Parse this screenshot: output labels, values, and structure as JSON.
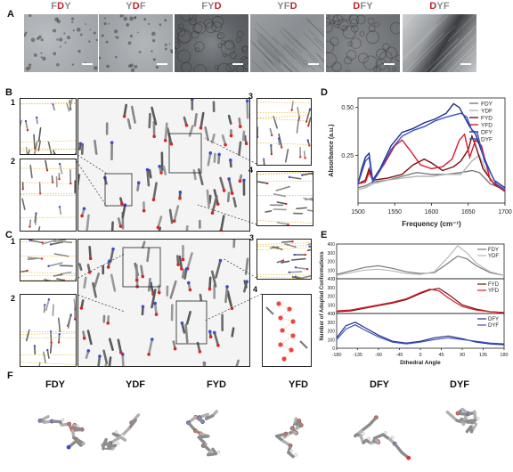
{
  "panels": {
    "A": "A",
    "B": "B",
    "C": "C",
    "D": "D",
    "E": "E",
    "F": "F"
  },
  "tem_titles": [
    {
      "parts": [
        {
          "t": "F",
          "c": "#8a8a8a"
        },
        {
          "t": "D",
          "c": "#c0262d"
        },
        {
          "t": "Y",
          "c": "#8a8a8a"
        }
      ]
    },
    {
      "parts": [
        {
          "t": "Y",
          "c": "#8a8a8a"
        },
        {
          "t": "D",
          "c": "#c0262d"
        },
        {
          "t": "F",
          "c": "#8a8a8a"
        }
      ]
    },
    {
      "parts": [
        {
          "t": "F",
          "c": "#8a8a8a"
        },
        {
          "t": "Y",
          "c": "#8a8a8a"
        },
        {
          "t": "D",
          "c": "#c0262d"
        }
      ]
    },
    {
      "parts": [
        {
          "t": "Y",
          "c": "#8a8a8a"
        },
        {
          "t": "F",
          "c": "#8a8a8a"
        },
        {
          "t": "D",
          "c": "#c0262d"
        }
      ]
    },
    {
      "parts": [
        {
          "t": "D",
          "c": "#c0262d"
        },
        {
          "t": "F",
          "c": "#8a8a8a"
        },
        {
          "t": "Y",
          "c": "#8a8a8a"
        }
      ]
    },
    {
      "parts": [
        {
          "t": "D",
          "c": "#c0262d"
        },
        {
          "t": "Y",
          "c": "#8a8a8a"
        },
        {
          "t": "F",
          "c": "#8a8a8a"
        }
      ]
    }
  ],
  "sub_labels_B": [
    "1",
    "2",
    "3",
    "4"
  ],
  "sub_labels_C": [
    "1",
    "2",
    "3",
    "4"
  ],
  "mol_titles": [
    "FDY",
    "YDF",
    "FYD",
    "YFD",
    "DFY",
    "DYF"
  ],
  "chart_data": [
    {
      "type": "line",
      "panel": "D",
      "xlabel": "Frequency (cm⁻¹)",
      "ylabel": "Absorbance (a.u.)",
      "xlim": [
        1500,
        1700
      ],
      "ylim": [
        0.0,
        0.55
      ],
      "xticks": [
        "1500",
        "1550",
        "1600",
        "1650",
        "1700"
      ],
      "yticks": [
        "0.25",
        "0.50"
      ],
      "legend_position": "top-right",
      "series": [
        {
          "name": "FDY",
          "color": "#7a7a7a",
          "x": [
            1500,
            1510,
            1520,
            1540,
            1560,
            1580,
            1600,
            1620,
            1640,
            1655,
            1665,
            1680,
            1700
          ],
          "y": [
            0.08,
            0.09,
            0.11,
            0.12,
            0.14,
            0.16,
            0.15,
            0.15,
            0.16,
            0.17,
            0.16,
            0.1,
            0.07
          ]
        },
        {
          "name": "YDF",
          "color": "#b5b5b5",
          "x": [
            1500,
            1510,
            1520,
            1540,
            1560,
            1580,
            1600,
            1620,
            1640,
            1655,
            1665,
            1680,
            1700
          ],
          "y": [
            0.07,
            0.08,
            0.1,
            0.12,
            0.13,
            0.14,
            0.14,
            0.15,
            0.15,
            0.22,
            0.25,
            0.12,
            0.06
          ]
        },
        {
          "name": "FYD",
          "color": "#7a1010",
          "x": [
            1500,
            1510,
            1515,
            1520,
            1540,
            1560,
            1575,
            1590,
            1600,
            1615,
            1630,
            1640,
            1650,
            1655,
            1660,
            1670,
            1685,
            1700
          ],
          "y": [
            0.1,
            0.12,
            0.18,
            0.12,
            0.13,
            0.15,
            0.2,
            0.23,
            0.21,
            0.17,
            0.19,
            0.22,
            0.28,
            0.35,
            0.3,
            0.18,
            0.1,
            0.06
          ]
        },
        {
          "name": "YFD",
          "color": "#d81c2a",
          "x": [
            1500,
            1510,
            1515,
            1520,
            1535,
            1550,
            1560,
            1570,
            1585,
            1600,
            1615,
            1628,
            1638,
            1645,
            1652,
            1660,
            1668,
            1680,
            1700
          ],
          "y": [
            0.1,
            0.11,
            0.16,
            0.12,
            0.2,
            0.3,
            0.33,
            0.28,
            0.2,
            0.18,
            0.19,
            0.23,
            0.33,
            0.36,
            0.24,
            0.33,
            0.3,
            0.12,
            0.06
          ]
        },
        {
          "name": "DFY",
          "color": "#1e2f86",
          "x": [
            1500,
            1505,
            1510,
            1515,
            1520,
            1530,
            1545,
            1560,
            1575,
            1590,
            1605,
            1620,
            1630,
            1638,
            1645,
            1652,
            1660,
            1670,
            1685,
            1700
          ],
          "y": [
            0.1,
            0.18,
            0.24,
            0.26,
            0.12,
            0.18,
            0.3,
            0.37,
            0.39,
            0.42,
            0.44,
            0.47,
            0.52,
            0.5,
            0.45,
            0.4,
            0.36,
            0.25,
            0.12,
            0.08
          ]
        },
        {
          "name": "DYF",
          "color": "#3c4fc8",
          "x": [
            1500,
            1505,
            1510,
            1515,
            1520,
            1530,
            1545,
            1560,
            1575,
            1590,
            1605,
            1620,
            1630,
            1640,
            1648,
            1655,
            1662,
            1672,
            1688,
            1700
          ],
          "y": [
            0.1,
            0.16,
            0.22,
            0.24,
            0.11,
            0.17,
            0.28,
            0.35,
            0.38,
            0.4,
            0.43,
            0.45,
            0.46,
            0.47,
            0.45,
            0.38,
            0.37,
            0.22,
            0.1,
            0.07
          ]
        }
      ]
    },
    {
      "type": "line",
      "panel": "E",
      "xlabel": "Dihedral Angle",
      "ylabel": "Number of Adopted Conformations",
      "xlim": [
        -180,
        180
      ],
      "ylim": [
        0,
        400
      ],
      "xticks": [
        "-180",
        "-135",
        "-90",
        "-45",
        "0",
        "45",
        "90",
        "135",
        "180"
      ],
      "yticks": [
        "0",
        "50",
        "100",
        "150",
        "200",
        "250",
        "300",
        "350",
        "400"
      ],
      "subplots": [
        {
          "series": [
            {
              "name": "FDY",
              "color": "#7a7a7a",
              "x": [
                -180,
                -150,
                -120,
                -90,
                -60,
                -30,
                0,
                30,
                60,
                80,
                100,
                120,
                150,
                180
              ],
              "y": [
                50,
                90,
                130,
                150,
                120,
                80,
                60,
                70,
                180,
                260,
                230,
                150,
                70,
                40
              ]
            },
            {
              "name": "YDF",
              "color": "#b8b8b8",
              "x": [
                -180,
                -150,
                -120,
                -90,
                -60,
                -30,
                0,
                30,
                60,
                80,
                100,
                120,
                150,
                180
              ],
              "y": [
                40,
                70,
                100,
                110,
                90,
                60,
                50,
                80,
                250,
                380,
                300,
                180,
                80,
                40
              ]
            }
          ]
        },
        {
          "series": [
            {
              "name": "FYD",
              "color": "#7a1010",
              "x": [
                -180,
                -150,
                -120,
                -90,
                -60,
                -30,
                0,
                20,
                40,
                60,
                90,
                120,
                150,
                180
              ],
              "y": [
                20,
                30,
                60,
                90,
                120,
                160,
                230,
                270,
                290,
                220,
                100,
                50,
                20,
                10
              ]
            },
            {
              "name": "YFD",
              "color": "#d81c2a",
              "x": [
                -180,
                -150,
                -120,
                -90,
                -60,
                -30,
                0,
                20,
                40,
                60,
                90,
                120,
                150,
                180
              ],
              "y": [
                30,
                40,
                70,
                100,
                130,
                170,
                240,
                280,
                260,
                180,
                80,
                40,
                20,
                10
              ]
            }
          ]
        },
        {
          "series": [
            {
              "name": "DFY",
              "color": "#1e2f86",
              "x": [
                -180,
                -160,
                -140,
                -120,
                -90,
                -60,
                -30,
                0,
                30,
                60,
                90,
                120,
                150,
                180
              ],
              "y": [
                120,
                260,
                300,
                240,
                150,
                80,
                60,
                80,
                120,
                140,
                110,
                70,
                50,
                40
              ]
            },
            {
              "name": "DYF",
              "color": "#3c4fc8",
              "x": [
                -180,
                -160,
                -140,
                -120,
                -90,
                -60,
                -30,
                0,
                30,
                60,
                90,
                120,
                150,
                180
              ],
              "y": [
                100,
                220,
                270,
                210,
                130,
                70,
                50,
                70,
                100,
                120,
                100,
                80,
                60,
                50
              ]
            }
          ]
        }
      ]
    }
  ]
}
